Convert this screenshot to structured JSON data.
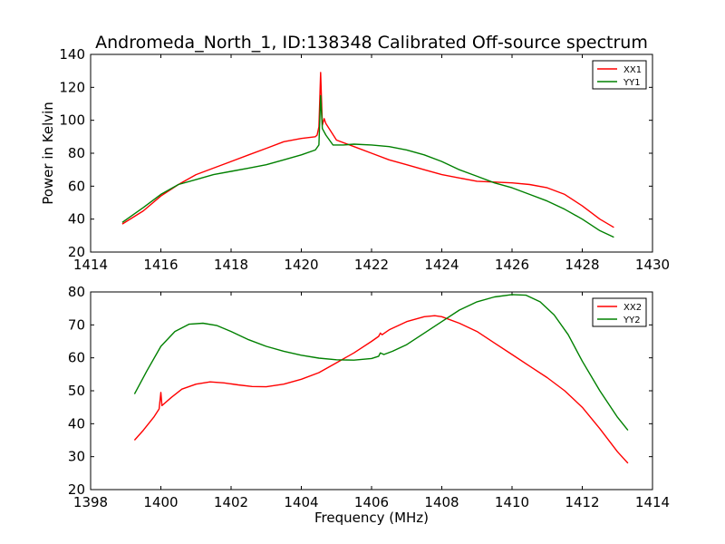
{
  "chart_data": [
    {
      "type": "line",
      "title": "Andromeda_North_1, ID:138348 Calibrated Off-source spectrum",
      "xlabel": "",
      "ylabel": "Power in Kelvin",
      "xlim": [
        1414,
        1430
      ],
      "ylim": [
        20,
        140
      ],
      "xticks": [
        "1414",
        "1416",
        "1418",
        "1420",
        "1422",
        "1424",
        "1426",
        "1428",
        "1430"
      ],
      "yticks": [
        "20",
        "40",
        "60",
        "80",
        "100",
        "120",
        "140"
      ],
      "legend_position": "top-right",
      "grid": false,
      "series": [
        {
          "name": "XX1",
          "color": "#ff0000",
          "points": [
            [
              1414.9,
              37
            ],
            [
              1415.5,
              45
            ],
            [
              1416,
              54
            ],
            [
              1416.5,
              61
            ],
            [
              1417,
              67
            ],
            [
              1417.5,
              71
            ],
            [
              1418,
              75
            ],
            [
              1418.5,
              79
            ],
            [
              1419,
              83
            ],
            [
              1419.5,
              87
            ],
            [
              1420,
              89
            ],
            [
              1420.4,
              90
            ],
            [
              1420.45,
              91
            ],
            [
              1420.5,
              96
            ],
            [
              1420.55,
              129
            ],
            [
              1420.6,
              97
            ],
            [
              1420.65,
              101
            ],
            [
              1420.7,
              98
            ],
            [
              1421,
              88
            ],
            [
              1421.5,
              84
            ],
            [
              1422,
              80
            ],
            [
              1422.5,
              76
            ],
            [
              1423,
              73
            ],
            [
              1423.5,
              70
            ],
            [
              1424,
              67
            ],
            [
              1424.5,
              65
            ],
            [
              1425,
              63
            ],
            [
              1425.5,
              62.5
            ],
            [
              1426,
              62
            ],
            [
              1426.5,
              61
            ],
            [
              1427,
              59
            ],
            [
              1427.5,
              55
            ],
            [
              1428,
              48
            ],
            [
              1428.5,
              40
            ],
            [
              1428.9,
              35
            ]
          ]
        },
        {
          "name": "YY1",
          "color": "#008000",
          "points": [
            [
              1414.9,
              38
            ],
            [
              1415.5,
              47
            ],
            [
              1416,
              55
            ],
            [
              1416.5,
              61
            ],
            [
              1417,
              64
            ],
            [
              1417.5,
              67
            ],
            [
              1418,
              69
            ],
            [
              1418.5,
              71
            ],
            [
              1419,
              73
            ],
            [
              1419.5,
              76
            ],
            [
              1420,
              79
            ],
            [
              1420.4,
              82
            ],
            [
              1420.5,
              85
            ],
            [
              1420.55,
              115
            ],
            [
              1420.6,
              95
            ],
            [
              1420.7,
              91
            ],
            [
              1420.9,
              85
            ],
            [
              1421.2,
              85
            ],
            [
              1421.5,
              85.5
            ],
            [
              1422,
              85
            ],
            [
              1422.5,
              84
            ],
            [
              1423,
              82
            ],
            [
              1423.5,
              79
            ],
            [
              1424,
              75
            ],
            [
              1424.5,
              70
            ],
            [
              1425,
              66
            ],
            [
              1425.5,
              62
            ],
            [
              1426,
              59
            ],
            [
              1426.5,
              55
            ],
            [
              1427,
              51
            ],
            [
              1427.5,
              46
            ],
            [
              1428,
              40
            ],
            [
              1428.5,
              33
            ],
            [
              1428.9,
              29
            ]
          ]
        }
      ]
    },
    {
      "type": "line",
      "title": "",
      "xlabel": "Frequency (MHz)",
      "ylabel": "",
      "xlim": [
        1398,
        1414
      ],
      "ylim": [
        20,
        80
      ],
      "xticks": [
        "1398",
        "1400",
        "1402",
        "1404",
        "1406",
        "1408",
        "1410",
        "1412",
        "1414"
      ],
      "yticks": [
        "20",
        "30",
        "40",
        "50",
        "60",
        "70",
        "80"
      ],
      "legend_position": "top-right",
      "grid": false,
      "series": [
        {
          "name": "XX2",
          "color": "#ff0000",
          "points": [
            [
              1399.25,
              35
            ],
            [
              1399.5,
              38
            ],
            [
              1399.8,
              42
            ],
            [
              1399.95,
              44.5
            ],
            [
              1400,
              49.5
            ],
            [
              1400.03,
              45.5
            ],
            [
              1400.3,
              48
            ],
            [
              1400.6,
              50.5
            ],
            [
              1401,
              52
            ],
            [
              1401.4,
              52.7
            ],
            [
              1401.8,
              52.4
            ],
            [
              1402.2,
              51.8
            ],
            [
              1402.6,
              51.3
            ],
            [
              1403,
              51.2
            ],
            [
              1403.5,
              52
            ],
            [
              1404,
              53.5
            ],
            [
              1404.5,
              55.5
            ],
            [
              1405,
              58.5
            ],
            [
              1405.5,
              61.5
            ],
            [
              1406,
              65
            ],
            [
              1406.2,
              66.5
            ],
            [
              1406.25,
              67.5
            ],
            [
              1406.3,
              67
            ],
            [
              1406.5,
              68.5
            ],
            [
              1407,
              71
            ],
            [
              1407.5,
              72.5
            ],
            [
              1407.8,
              72.8
            ],
            [
              1408,
              72.5
            ],
            [
              1408.5,
              70.5
            ],
            [
              1409,
              68
            ],
            [
              1409.5,
              64.5
            ],
            [
              1410,
              61
            ],
            [
              1410.5,
              57.5
            ],
            [
              1411,
              54
            ],
            [
              1411.5,
              50
            ],
            [
              1412,
              45
            ],
            [
              1412.5,
              38.5
            ],
            [
              1413,
              31.5
            ],
            [
              1413.3,
              28
            ]
          ]
        },
        {
          "name": "YY2",
          "color": "#008000",
          "points": [
            [
              1399.25,
              49
            ],
            [
              1399.6,
              56
            ],
            [
              1400,
              63.5
            ],
            [
              1400.4,
              68
            ],
            [
              1400.8,
              70.2
            ],
            [
              1401.2,
              70.5
            ],
            [
              1401.6,
              69.8
            ],
            [
              1402,
              68
            ],
            [
              1402.5,
              65.5
            ],
            [
              1403,
              63.5
            ],
            [
              1403.5,
              62
            ],
            [
              1404,
              60.8
            ],
            [
              1404.5,
              59.9
            ],
            [
              1405,
              59.4
            ],
            [
              1405.5,
              59.3
            ],
            [
              1406,
              59.8
            ],
            [
              1406.2,
              60.5
            ],
            [
              1406.25,
              61.5
            ],
            [
              1406.35,
              61
            ],
            [
              1406.6,
              62
            ],
            [
              1407,
              64
            ],
            [
              1407.5,
              67.5
            ],
            [
              1408,
              71
            ],
            [
              1408.5,
              74.5
            ],
            [
              1409,
              77
            ],
            [
              1409.5,
              78.5
            ],
            [
              1410,
              79.2
            ],
            [
              1410.4,
              79
            ],
            [
              1410.8,
              77
            ],
            [
              1411.2,
              73
            ],
            [
              1411.6,
              67
            ],
            [
              1412,
              59
            ],
            [
              1412.5,
              50
            ],
            [
              1413,
              42
            ],
            [
              1413.3,
              38
            ]
          ]
        }
      ]
    }
  ]
}
